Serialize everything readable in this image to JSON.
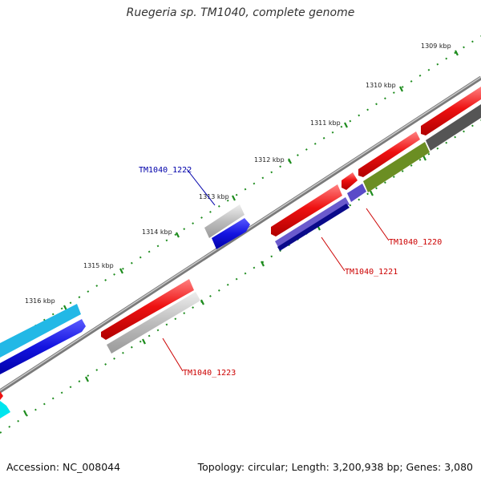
{
  "title": "Ruegeria sp. TM1040, complete genome",
  "footer": {
    "accession": "Accession: NC_008044",
    "summary": "Topology: circular; Length: 3,200,938 bp; Genes: 3,080"
  },
  "scale_labels": [
    "1309 kbp",
    "1310 kbp",
    "1311 kbp",
    "1312 kbp",
    "1313 kbp",
    "1314 kbp",
    "1315 kbp",
    "1316 kbp"
  ],
  "gene_labels": {
    "g1220": "TM1040_1220",
    "g1221": "TM1040_1221",
    "g1222": "TM1040_1222",
    "g1223": "TM1040_1223"
  },
  "colors": {
    "red": "#ee1111",
    "blue": "#1a1ae6",
    "navy": "#0a0a8a",
    "slate": "#6a5acd",
    "gray": "#b8b8b8",
    "dark_gray": "#666666",
    "olive": "#6b8e23",
    "sky": "#22b8e6",
    "cyan": "#00e5ee",
    "tick_green": "#1e8c1e",
    "label_red": "#cc0000",
    "label_blue": "#0000aa"
  }
}
